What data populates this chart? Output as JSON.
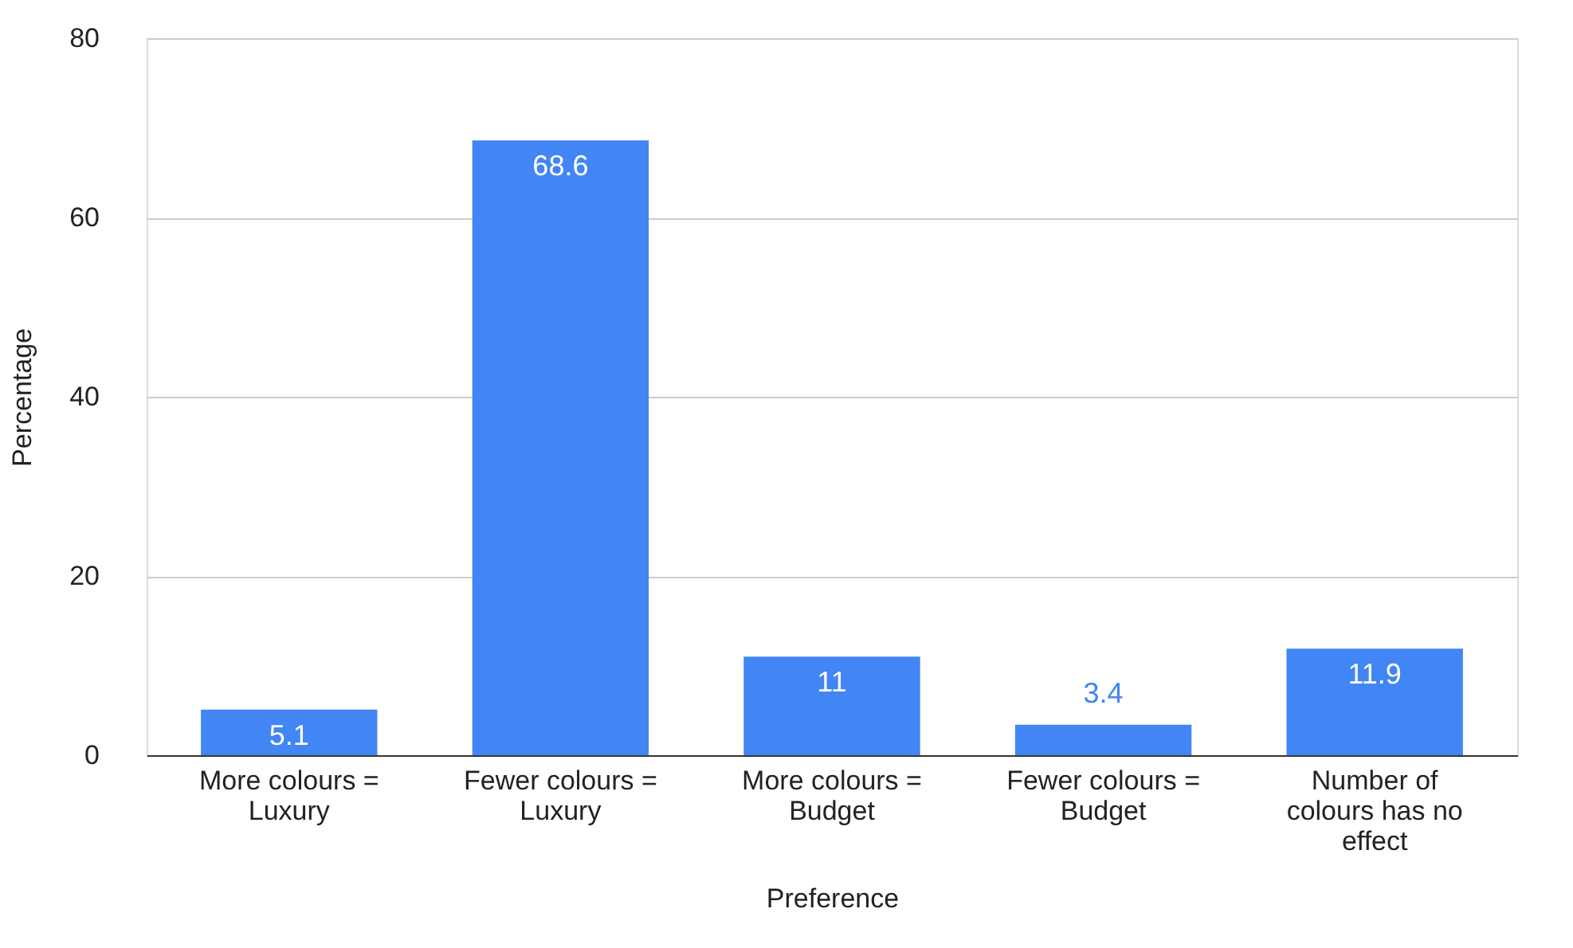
{
  "chart_data": {
    "type": "bar",
    "xlabel": "Preference",
    "ylabel": "Percentage",
    "categories": [
      "More colours =\nLuxury",
      "Fewer colours =\nLuxury",
      "More colours =\nBudget",
      "Fewer colours =\nBudget",
      "Number of\ncolours has no\neffect"
    ],
    "values": [
      5.1,
      68.6,
      11,
      3.4,
      11.9
    ],
    "color": "#4285f4",
    "ylim": [
      0,
      80
    ],
    "yticks": [
      0,
      20,
      40,
      60,
      80
    ],
    "grid": "y",
    "data_labels": true
  }
}
